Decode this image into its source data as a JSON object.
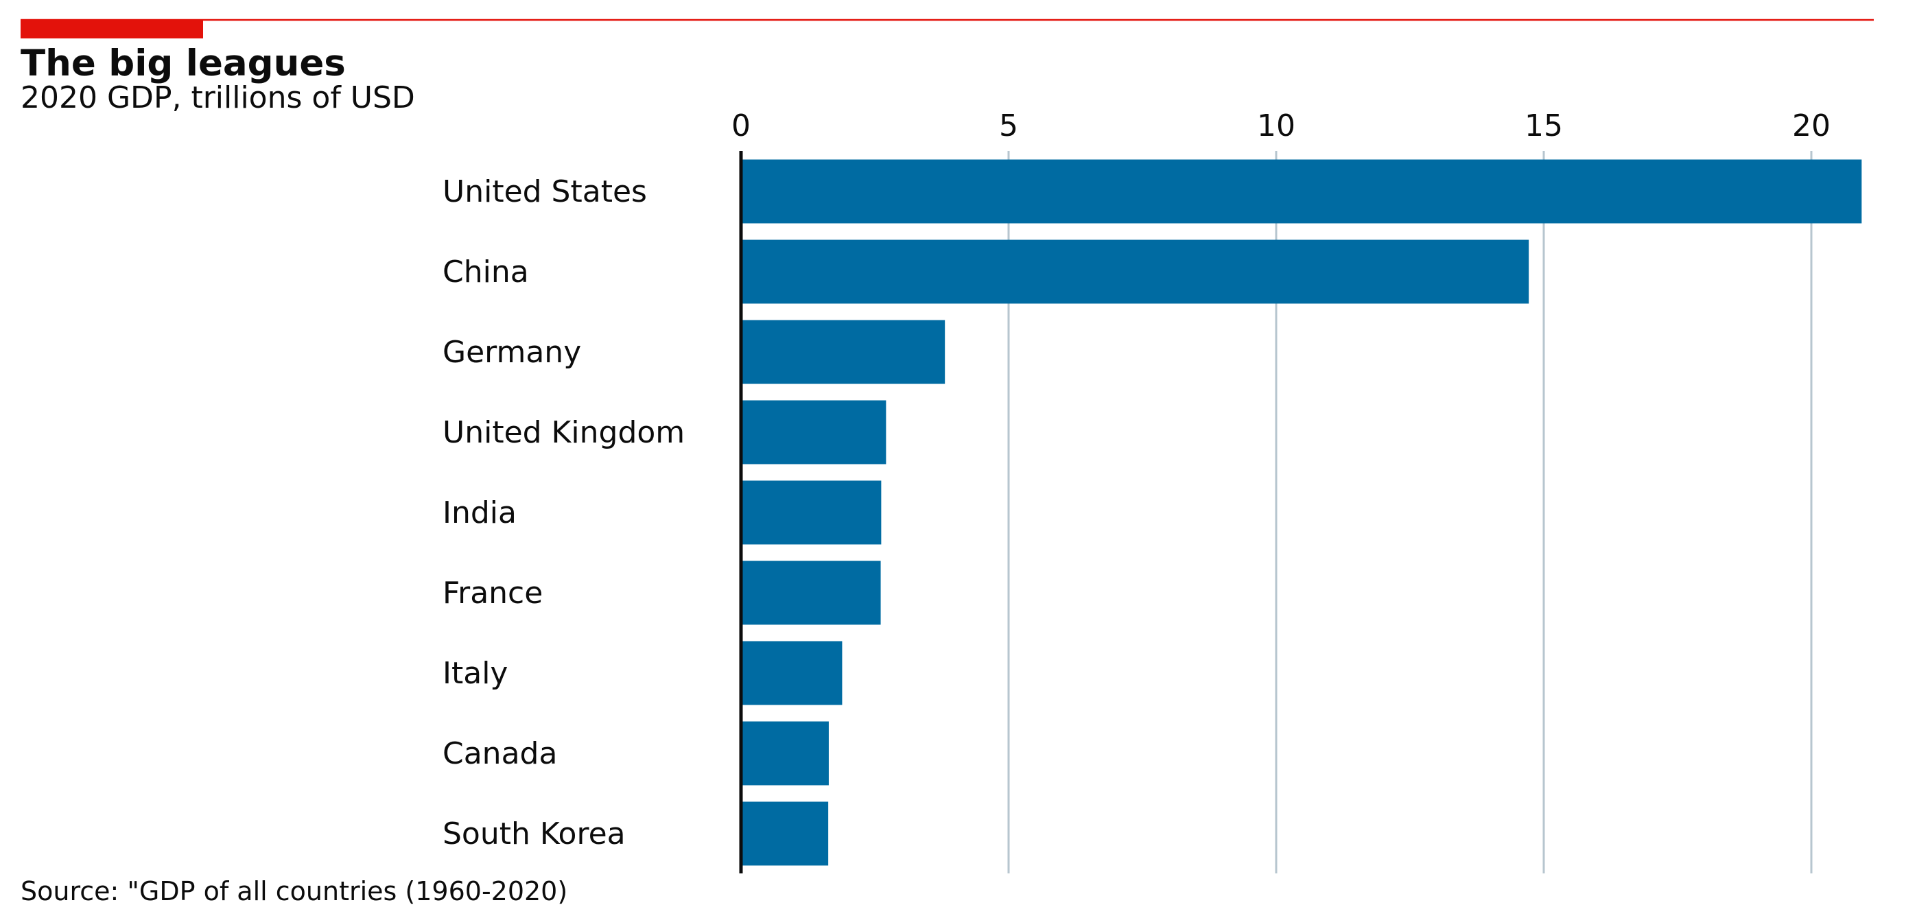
{
  "colors": {
    "accent": "#E3120B",
    "bar": "#006BA2",
    "grid": "#B7C6CF",
    "text": "#0C0C0C",
    "axis": "#0C0C0C"
  },
  "header": {
    "title": "The big leagues",
    "subtitle": "2020 GDP, trillions of USD"
  },
  "footer": {
    "source": "Source: \"GDP of all countries (1960-2020)"
  },
  "chart_data": {
    "type": "bar",
    "orientation": "horizontal",
    "title": "The big leagues",
    "subtitle": "2020 GDP, trillions of USD",
    "categories": [
      "United States",
      "China",
      "Germany",
      "United Kingdom",
      "India",
      "France",
      "Italy",
      "Canada",
      "South Korea"
    ],
    "values": [
      20.94,
      14.72,
      3.81,
      2.71,
      2.62,
      2.61,
      1.89,
      1.64,
      1.63
    ],
    "xlim": [
      0,
      21
    ],
    "xticks": [
      0,
      5,
      10,
      15,
      20
    ],
    "xtick_labels": [
      "0",
      "5",
      "10",
      "15",
      "20"
    ],
    "xaxis_position": "top",
    "grid": "vertical",
    "legend": "none"
  }
}
